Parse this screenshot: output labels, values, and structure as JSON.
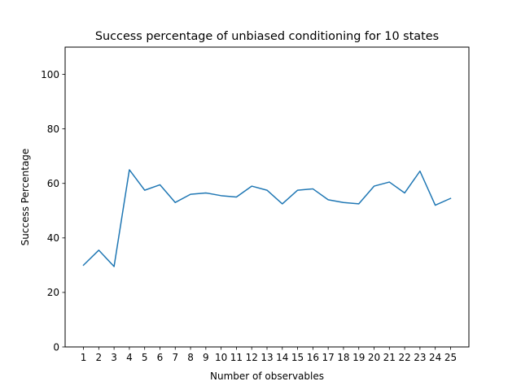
{
  "chart_data": {
    "type": "line",
    "title": "Success percentage of unbiased conditioning for 10 states",
    "xlabel": "Number of observables",
    "ylabel": "Success Percentage",
    "x": [
      1,
      2,
      3,
      4,
      5,
      6,
      7,
      8,
      9,
      10,
      11,
      12,
      13,
      14,
      15,
      16,
      17,
      18,
      19,
      20,
      21,
      22,
      23,
      24,
      25
    ],
    "xticks": [
      "1",
      "2",
      "3",
      "4",
      "5",
      "6",
      "7",
      "8",
      "9",
      "10",
      "11",
      "12",
      "13",
      "14",
      "15",
      "16",
      "17",
      "18",
      "19",
      "20",
      "21",
      "22",
      "23",
      "24",
      "25"
    ],
    "ylim": [
      0,
      110
    ],
    "yticks": [
      "0",
      "20",
      "40",
      "60",
      "80",
      "100"
    ],
    "xlim": [
      -0.2,
      26.2
    ],
    "grid": false,
    "series": [
      {
        "color": "#1f77b4",
        "values": [
          30.0,
          35.5,
          29.5,
          65.0,
          57.5,
          59.5,
          53.0,
          56.0,
          56.5,
          55.5,
          55.0,
          59.0,
          57.5,
          52.5,
          57.5,
          58.0,
          54.0,
          53.0,
          52.5,
          59.0,
          60.5,
          56.5,
          64.5,
          52.0,
          54.5
        ]
      }
    ]
  }
}
